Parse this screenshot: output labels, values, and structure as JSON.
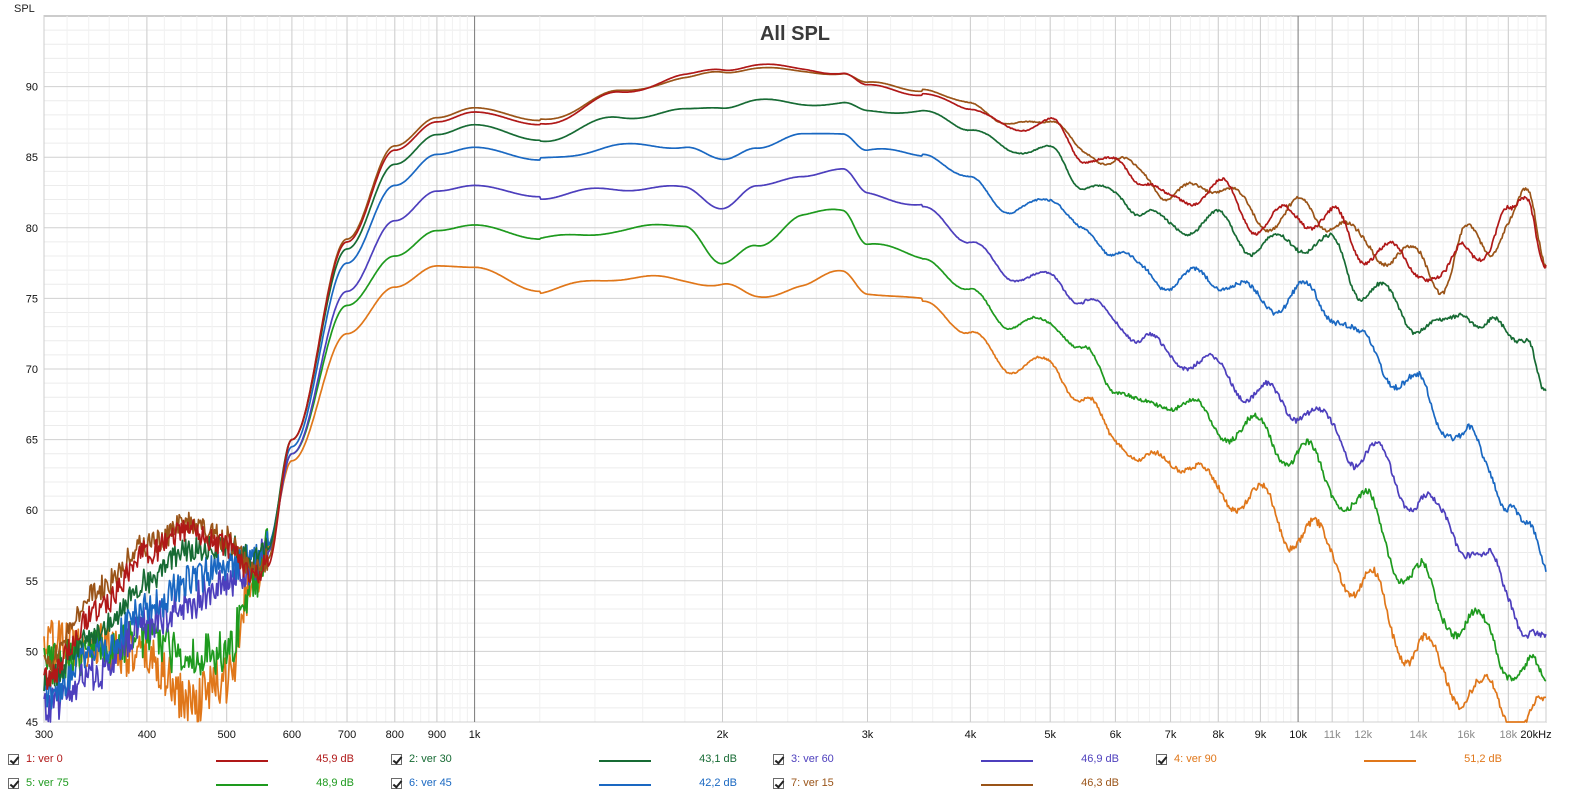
{
  "chart_data": {
    "type": "line",
    "title": "All SPL",
    "ylabel": "SPL",
    "x_scale": "log",
    "xlim": [
      300,
      20000
    ],
    "ylim": [
      45,
      95
    ],
    "grid": true,
    "x_ticks": [
      {
        "v": 300,
        "label": "300",
        "major": false
      },
      {
        "v": 400,
        "label": "400",
        "major": false
      },
      {
        "v": 500,
        "label": "500",
        "major": false
      },
      {
        "v": 600,
        "label": "600",
        "major": false
      },
      {
        "v": 700,
        "label": "700",
        "major": false
      },
      {
        "v": 800,
        "label": "800",
        "major": false
      },
      {
        "v": 900,
        "label": "900",
        "major": false
      },
      {
        "v": 1000,
        "label": "1k",
        "major": true
      },
      {
        "v": 2000,
        "label": "2k",
        "major": false
      },
      {
        "v": 3000,
        "label": "3k",
        "major": false
      },
      {
        "v": 4000,
        "label": "4k",
        "major": false
      },
      {
        "v": 5000,
        "label": "5k",
        "major": false
      },
      {
        "v": 6000,
        "label": "6k",
        "major": false
      },
      {
        "v": 7000,
        "label": "7k",
        "major": false
      },
      {
        "v": 8000,
        "label": "8k",
        "major": false
      },
      {
        "v": 9000,
        "label": "9k",
        "major": false
      },
      {
        "v": 10000,
        "label": "10k",
        "major": true
      },
      {
        "v": 11000,
        "label": "11k",
        "major": false
      },
      {
        "v": 12000,
        "label": "12k",
        "major": false
      },
      {
        "v": 14000,
        "label": "14k",
        "major": false
      },
      {
        "v": 16000,
        "label": "16k",
        "major": false
      },
      {
        "v": 18000,
        "label": "18k",
        "major": false
      },
      {
        "v": 20000,
        "label": "20kHz",
        "major": false
      }
    ],
    "y_ticks": [
      {
        "v": 45,
        "label": "45"
      },
      {
        "v": 50,
        "label": "50"
      },
      {
        "v": 55,
        "label": "55"
      },
      {
        "v": 60,
        "label": "60"
      },
      {
        "v": 65,
        "label": "65"
      },
      {
        "v": 70,
        "label": "70"
      },
      {
        "v": 75,
        "label": "75"
      },
      {
        "v": 80,
        "label": "80"
      },
      {
        "v": 85,
        "label": "85"
      },
      {
        "v": 90,
        "label": "90"
      }
    ],
    "series": [
      {
        "name": "1: ver 0",
        "level": "45,9 dB",
        "color": "#b01818",
        "noise": 0.8,
        "ripple": 0.55,
        "x": [
          300,
          350,
          400,
          450,
          500,
          540,
          560,
          600,
          700,
          800,
          900,
          1000,
          1200,
          1500,
          1800,
          2000,
          2200,
          2500,
          2800,
          3000,
          3500,
          4000,
          4500,
          5000,
          5500,
          6000,
          6500,
          7000,
          8000,
          9000,
          10000,
          11000,
          12000,
          14000,
          15000,
          16000,
          17000,
          18000,
          19000,
          20000
        ],
        "y": [
          48,
          53,
          57,
          58.5,
          57.5,
          55.5,
          56,
          65,
          79,
          85.5,
          87.5,
          88.2,
          87.3,
          89.5,
          90.8,
          91.2,
          91.6,
          91.2,
          91,
          90,
          89.5,
          88.5,
          87,
          87.5,
          85,
          84.5,
          83.5,
          81.8,
          82.8,
          80.2,
          81,
          80.5,
          78.5,
          77.5,
          76,
          79,
          78.5,
          80.5,
          82.8,
          77.5
        ]
      },
      {
        "name": "2: ver 30",
        "level": "43,1 dB",
        "color": "#176b34",
        "noise": 0.8,
        "ripple": 0.55,
        "x": [
          300,
          350,
          400,
          450,
          500,
          540,
          560,
          600,
          700,
          800,
          900,
          1000,
          1200,
          1500,
          1800,
          2000,
          2200,
          2500,
          2800,
          3000,
          3500,
          4000,
          4500,
          5000,
          5500,
          6000,
          6500,
          7000,
          8000,
          9000,
          10000,
          11000,
          12000,
          14000,
          15000,
          16000,
          17000,
          18000,
          19000,
          20000
        ],
        "y": [
          48,
          51.5,
          55,
          57.2,
          57.5,
          56.5,
          57.2,
          65,
          78.5,
          84.5,
          86.6,
          87.3,
          86.2,
          87.8,
          88.3,
          88.6,
          89,
          88.8,
          88.8,
          88.2,
          88.3,
          87,
          85.5,
          85.5,
          83,
          82.3,
          81.2,
          80,
          80.5,
          78.5,
          79.2,
          78.5,
          75.8,
          73.5,
          72.5,
          74.5,
          73,
          72,
          73,
          68
        ]
      },
      {
        "name": "3: ver 60",
        "level": "46,9 dB",
        "color": "#4d3fbd",
        "noise": 1.2,
        "ripple": 0.7,
        "x": [
          300,
          350,
          400,
          450,
          500,
          540,
          560,
          600,
          700,
          800,
          900,
          1000,
          1200,
          1500,
          1800,
          2000,
          2200,
          2500,
          2800,
          3000,
          3500,
          4000,
          4500,
          5000,
          5500,
          6000,
          6500,
          7000,
          8000,
          9000,
          10000,
          11000,
          12000,
          14000,
          15000,
          16000,
          17000,
          18000,
          19000,
          20000
        ],
        "y": [
          46,
          48.5,
          52,
          53.5,
          55,
          56,
          57,
          64,
          75.5,
          80.5,
          82.6,
          83,
          82.2,
          82.8,
          82.8,
          81.5,
          82.8,
          83.8,
          84,
          82.5,
          81.5,
          79,
          76.5,
          76.5,
          74.8,
          73.5,
          72,
          71,
          70,
          68,
          67.5,
          65.5,
          64,
          61,
          59,
          58,
          56,
          54,
          52,
          50
        ]
      },
      {
        "name": "4: ver 90",
        "level": "51,2 dB",
        "color": "#e0771a",
        "noise": 1.6,
        "ripple": 0.9,
        "x": [
          300,
          350,
          400,
          450,
          500,
          540,
          560,
          600,
          700,
          800,
          900,
          1000,
          1200,
          1500,
          1800,
          2000,
          2200,
          2500,
          2800,
          3000,
          3500,
          4000,
          4500,
          5000,
          5500,
          6000,
          6500,
          7000,
          8000,
          9000,
          10000,
          11000,
          12000,
          14000,
          15000,
          16000,
          17000,
          18000,
          19000,
          20000
        ],
        "y": [
          50.5,
          50.5,
          49.5,
          46.5,
          48,
          55,
          57.5,
          63.5,
          72.5,
          75.8,
          77.3,
          77.2,
          75.5,
          76.5,
          76.3,
          76,
          75,
          76,
          76.8,
          75.5,
          74.8,
          72.5,
          70,
          70.5,
          67.5,
          65.5,
          63,
          64,
          61.5,
          60.5,
          58.5,
          57,
          54.5,
          50,
          48.5,
          47.5,
          46.5,
          46,
          45.5,
          45
        ]
      },
      {
        "name": "5: ver 75",
        "level": "48,9 dB",
        "color": "#1e9a1e",
        "noise": 1.4,
        "ripple": 0.8,
        "x": [
          300,
          350,
          400,
          450,
          500,
          540,
          560,
          600,
          700,
          800,
          900,
          1000,
          1200,
          1500,
          1800,
          2000,
          2200,
          2500,
          2800,
          3000,
          3500,
          4000,
          4500,
          5000,
          5500,
          6000,
          6500,
          7000,
          8000,
          9000,
          10000,
          11000,
          12000,
          14000,
          15000,
          16000,
          17000,
          18000,
          19000,
          20000
        ],
        "y": [
          49,
          50,
          51,
          49.5,
          50,
          55,
          57.5,
          64,
          74.5,
          78,
          79.8,
          80.2,
          79.2,
          79.8,
          80.3,
          77.3,
          78.8,
          80.8,
          81.3,
          79,
          77.8,
          75.5,
          73,
          73.5,
          71,
          69,
          67,
          68,
          66,
          65.5,
          64,
          62,
          60,
          55,
          53,
          52,
          51,
          49.5,
          48.5,
          47
        ]
      },
      {
        "name": "6: ver 45",
        "level": "42,2 dB",
        "color": "#1a68c2",
        "noise": 1.1,
        "ripple": 0.65,
        "x": [
          300,
          350,
          400,
          450,
          500,
          540,
          560,
          600,
          700,
          800,
          900,
          1000,
          1200,
          1500,
          1800,
          2000,
          2200,
          2500,
          2800,
          3000,
          3500,
          4000,
          4500,
          5000,
          5500,
          6000,
          6500,
          7000,
          8000,
          9000,
          10000,
          11000,
          12000,
          14000,
          15000,
          16000,
          17000,
          18000,
          19000,
          20000
        ],
        "y": [
          47,
          50,
          53,
          55,
          56.2,
          56.5,
          57.5,
          64.5,
          77.5,
          83,
          85.2,
          85.7,
          84.8,
          85.8,
          85.8,
          84.7,
          85.8,
          86.5,
          86.8,
          85.5,
          85.2,
          83.5,
          81,
          82.3,
          79.5,
          78.5,
          76.8,
          76.2,
          76.5,
          74.8,
          75.2,
          74.5,
          71.5,
          68.5,
          66.5,
          65,
          63,
          61,
          58,
          56
        ]
      },
      {
        "name": "7: ver 15",
        "level": "46,3 dB",
        "color": "#9a5418",
        "noise": 0.8,
        "ripple": 0.55,
        "x": [
          300,
          350,
          400,
          450,
          500,
          540,
          560,
          600,
          700,
          800,
          900,
          1000,
          1200,
          1500,
          1800,
          2000,
          2200,
          2500,
          2800,
          3000,
          3500,
          4000,
          4500,
          5000,
          5500,
          6000,
          6500,
          7000,
          8000,
          9000,
          10000,
          11000,
          12000,
          14000,
          15000,
          16000,
          17000,
          18000,
          19000,
          20000
        ],
        "y": [
          49,
          54.5,
          57.5,
          59,
          58,
          56,
          56.5,
          65,
          79.2,
          85.8,
          87.8,
          88.5,
          87.6,
          89.6,
          90.6,
          91,
          91.4,
          91,
          91,
          90.2,
          89.8,
          88.8,
          87.2,
          87.8,
          85.2,
          84.8,
          83.8,
          82.2,
          83.2,
          80.5,
          81.2,
          80.7,
          78.7,
          77.7,
          76.3,
          79.2,
          78.8,
          80.5,
          81.8,
          78
        ]
      }
    ]
  },
  "legend": {
    "items": [
      {
        "label": "1: ver 0",
        "value": "45,9 dB",
        "color": "#b01818"
      },
      {
        "label": "2: ver 30",
        "value": "43,1 dB",
        "color": "#176b34"
      },
      {
        "label": "3: ver 60",
        "value": "46,9 dB",
        "color": "#4d3fbd"
      },
      {
        "label": "4: ver 90",
        "value": "51,2 dB",
        "color": "#e0771a"
      },
      {
        "label": "5: ver 75",
        "value": "48,9 dB",
        "color": "#1e9a1e"
      },
      {
        "label": "6: ver 45",
        "value": "42,2 dB",
        "color": "#1a68c2"
      },
      {
        "label": "7: ver 15",
        "value": "46,3 dB",
        "color": "#9a5418"
      }
    ]
  }
}
